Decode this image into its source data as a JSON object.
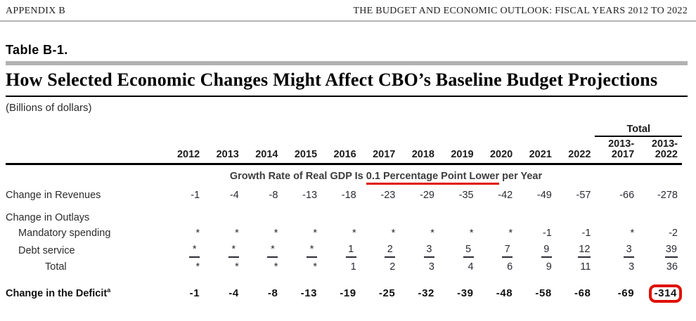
{
  "page_header": {
    "left": "APPENDIX B",
    "right": "THE BUDGET AND ECONOMIC OUTLOOK: FISCAL YEARS 2012 TO 2022"
  },
  "table_label": "Table B-1.",
  "title": "How Selected Economic Changes Might Affect CBO’s Baseline Budget Projections",
  "units": "(Billions of dollars)",
  "colors": {
    "accent_red": "#e01000",
    "rule_gray": "#b2b2b2"
  },
  "table": {
    "total_header": "Total",
    "year_columns": [
      "2012",
      "2013",
      "2014",
      "2015",
      "2016",
      "2017",
      "2018",
      "2019",
      "2020",
      "2021",
      "2022"
    ],
    "total_columns": [
      {
        "line1": "2013-",
        "line2": "2017"
      },
      {
        "line1": "2013-",
        "line2": "2022"
      }
    ],
    "scenario_heading": {
      "prefix": "Growth Rate of Real GDP Is ",
      "underlined": "0.1 Percentage Point Lower",
      "suffix": " per Year"
    },
    "rows": [
      {
        "label": "Change in Revenues",
        "style": "revenues",
        "values": [
          "-1",
          "-4",
          "-8",
          "-13",
          "-18",
          "-23",
          "-29",
          "-35",
          "-42",
          "-49",
          "-57",
          "-66",
          "-278"
        ]
      },
      {
        "label": "Change in Outlays",
        "style": "section",
        "values": []
      },
      {
        "label": "Mandatory spending",
        "style": "sub",
        "values": [
          "*",
          "*",
          "*",
          "*",
          "*",
          "*",
          "*",
          "*",
          "*",
          "-1",
          "-1",
          "*",
          "-2"
        ]
      },
      {
        "label": "Debt service",
        "style": "sub",
        "sum_underline": true,
        "values": [
          "*",
          "*",
          "*",
          "*",
          "1",
          "2",
          "3",
          "5",
          "7",
          "9",
          "12",
          "3",
          "39"
        ]
      },
      {
        "label": "Total",
        "style": "subtotal",
        "values": [
          "*",
          "*",
          "*",
          "*",
          "1",
          "2",
          "3",
          "4",
          "6",
          "9",
          "11",
          "3",
          "36"
        ]
      },
      {
        "label": "Change in the Deficit",
        "superscript": "a",
        "style": "deficit",
        "highlight_last": true,
        "values": [
          "-1",
          "-4",
          "-8",
          "-13",
          "-19",
          "-25",
          "-32",
          "-39",
          "-48",
          "-58",
          "-68",
          "-69",
          "-314"
        ]
      }
    ]
  }
}
